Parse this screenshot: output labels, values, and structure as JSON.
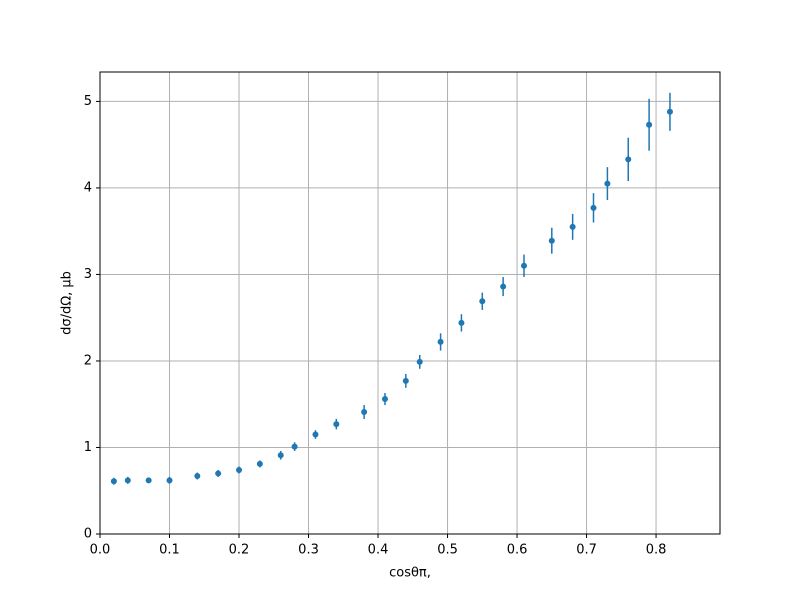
{
  "chart_data": {
    "type": "errorbar",
    "xlabel": "cosθπ,",
    "ylabel": "dσ/dΩ, μb",
    "color": "#1f77b4",
    "grid": true,
    "x": [
      0.02,
      0.04,
      0.07,
      0.1,
      0.14,
      0.17,
      0.2,
      0.23,
      0.26,
      0.28,
      0.31,
      0.34,
      0.38,
      0.41,
      0.44,
      0.46,
      0.49,
      0.52,
      0.55,
      0.58,
      0.61,
      0.65,
      0.68,
      0.71,
      0.73,
      0.76,
      0.79,
      0.82
    ],
    "values": [
      0.61,
      0.62,
      0.62,
      0.62,
      0.67,
      0.7,
      0.74,
      0.81,
      0.91,
      1.01,
      1.15,
      1.27,
      1.41,
      1.56,
      1.77,
      1.99,
      2.22,
      2.44,
      2.69,
      2.86,
      3.1,
      3.39,
      3.55,
      3.77,
      4.05,
      4.33,
      4.73,
      4.88
    ],
    "errors": [
      0.04,
      0.04,
      0.03,
      0.04,
      0.04,
      0.04,
      0.04,
      0.04,
      0.05,
      0.05,
      0.05,
      0.06,
      0.08,
      0.07,
      0.08,
      0.08,
      0.1,
      0.1,
      0.1,
      0.11,
      0.13,
      0.15,
      0.15,
      0.17,
      0.19,
      0.25,
      0.3,
      0.22
    ],
    "xlim": [
      0,
      0.892
    ],
    "ylim": [
      0,
      5.34
    ],
    "xticks": [
      {
        "value": 0,
        "label": "0.0"
      },
      0.1,
      0.2,
      0.3,
      0.4,
      0.5,
      0.6,
      0.7,
      0.8
    ],
    "yticks": [
      0,
      1,
      2,
      3,
      4,
      5
    ]
  }
}
